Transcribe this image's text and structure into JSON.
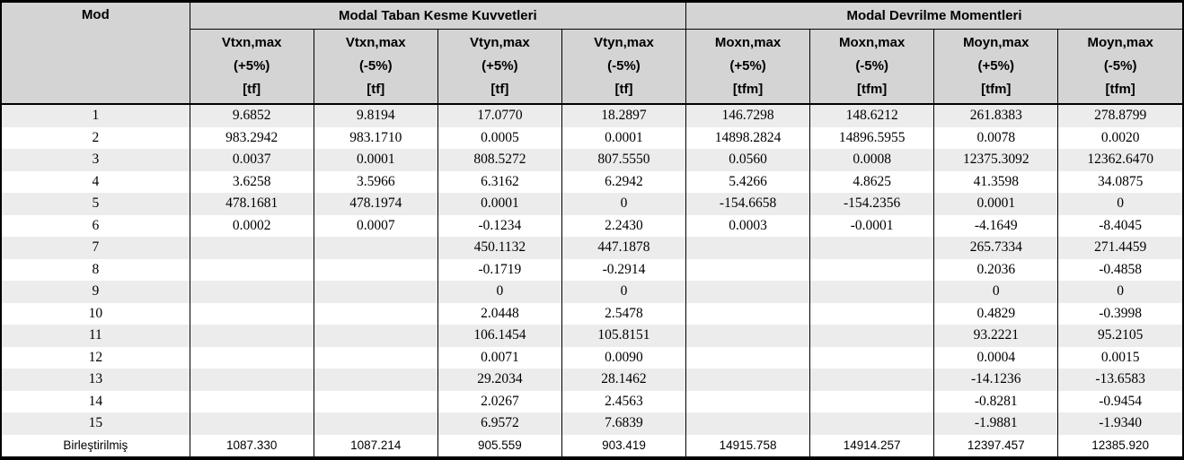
{
  "table": {
    "mod_header": "Mod",
    "groups": [
      {
        "label": "Modal Taban Kesme Kuvvetleri"
      },
      {
        "label": "Modal Devrilme Momentleri"
      }
    ],
    "columns": [
      {
        "name": "Vtxn,max",
        "ecc": "(+5%)",
        "unit": "[tf]"
      },
      {
        "name": "Vtxn,max",
        "ecc": "(-5%)",
        "unit": "[tf]"
      },
      {
        "name": "Vtyn,max",
        "ecc": "(+5%)",
        "unit": "[tf]"
      },
      {
        "name": "Vtyn,max",
        "ecc": "(-5%)",
        "unit": "[tf]"
      },
      {
        "name": "Moxn,max",
        "ecc": "(+5%)",
        "unit": "[tfm]"
      },
      {
        "name": "Moxn,max",
        "ecc": "(-5%)",
        "unit": "[tfm]"
      },
      {
        "name": "Moyn,max",
        "ecc": "(+5%)",
        "unit": "[tfm]"
      },
      {
        "name": "Moyn,max",
        "ecc": "(-5%)",
        "unit": "[tfm]"
      }
    ],
    "rows": [
      {
        "mod": "1",
        "values": [
          "9.6852",
          "9.8194",
          "17.0770",
          "18.2897",
          "146.7298",
          "148.6212",
          "261.8383",
          "278.8799"
        ]
      },
      {
        "mod": "2",
        "values": [
          "983.2942",
          "983.1710",
          "0.0005",
          "0.0001",
          "14898.2824",
          "14896.5955",
          "0.0078",
          "0.0020"
        ]
      },
      {
        "mod": "3",
        "values": [
          "0.0037",
          "0.0001",
          "808.5272",
          "807.5550",
          "0.0560",
          "0.0008",
          "12375.3092",
          "12362.6470"
        ]
      },
      {
        "mod": "4",
        "values": [
          "3.6258",
          "3.5966",
          "6.3162",
          "6.2942",
          "5.4266",
          "4.8625",
          "41.3598",
          "34.0875"
        ]
      },
      {
        "mod": "5",
        "values": [
          "478.1681",
          "478.1974",
          "0.0001",
          "0",
          "-154.6658",
          "-154.2356",
          "0.0001",
          "0"
        ]
      },
      {
        "mod": "6",
        "values": [
          "0.0002",
          "0.0007",
          "-0.1234",
          "2.2430",
          "0.0003",
          "-0.0001",
          "-4.1649",
          "-8.4045"
        ]
      },
      {
        "mod": "7",
        "values": [
          "",
          "",
          "450.1132",
          "447.1878",
          "",
          "",
          "265.7334",
          "271.4459"
        ]
      },
      {
        "mod": "8",
        "values": [
          "",
          "",
          "-0.1719",
          "-0.2914",
          "",
          "",
          "0.2036",
          "-0.4858"
        ]
      },
      {
        "mod": "9",
        "values": [
          "",
          "",
          "0",
          "0",
          "",
          "",
          "0",
          "0"
        ]
      },
      {
        "mod": "10",
        "values": [
          "",
          "",
          "2.0448",
          "2.5478",
          "",
          "",
          "0.4829",
          "-0.3998"
        ]
      },
      {
        "mod": "11",
        "values": [
          "",
          "",
          "106.1454",
          "105.8151",
          "",
          "",
          "93.2221",
          "95.2105"
        ]
      },
      {
        "mod": "12",
        "values": [
          "",
          "",
          "0.0071",
          "0.0090",
          "",
          "",
          "0.0004",
          "0.0015"
        ]
      },
      {
        "mod": "13",
        "values": [
          "",
          "",
          "29.2034",
          "28.1462",
          "",
          "",
          "-14.1236",
          "-13.6583"
        ]
      },
      {
        "mod": "14",
        "values": [
          "",
          "",
          "2.0267",
          "2.4563",
          "",
          "",
          "-0.8281",
          "-0.9454"
        ]
      },
      {
        "mod": "15",
        "values": [
          "",
          "",
          "6.9572",
          "7.6839",
          "",
          "",
          "-1.9881",
          "-1.9340"
        ]
      }
    ],
    "combined_row": {
      "mod": "Birleştirilmiş",
      "values": [
        "1087.330",
        "1087.214",
        "905.559",
        "903.419",
        "14915.758",
        "14914.257",
        "12397.457",
        "12385.920"
      ]
    }
  },
  "colors": {
    "header_bg": "#d4d4d4",
    "row_alt_bg": "#ececec",
    "row_bg": "#ffffff",
    "border": "#000000",
    "text": "#000000"
  }
}
